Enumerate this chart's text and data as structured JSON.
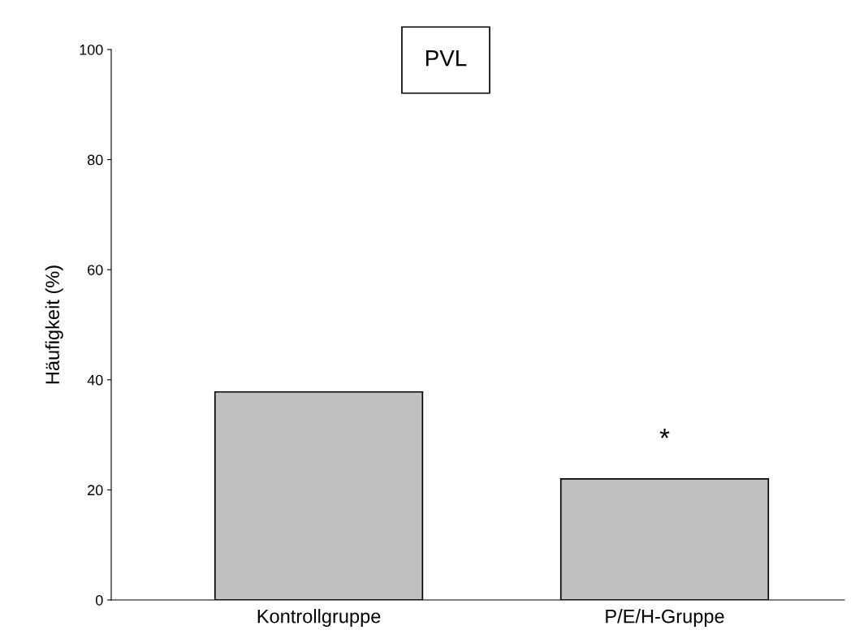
{
  "chart_data": {
    "type": "bar",
    "title": "PVL",
    "ylabel": "Häufigkeit (%)",
    "categories": [
      "Kontrollgruppe",
      "P/E/H-Gruppe"
    ],
    "values": [
      37.8,
      22.0
    ],
    "color": "#c0c0c0",
    "ylim": [
      0,
      100
    ],
    "yticks": [
      0,
      20,
      40,
      60,
      80,
      100
    ],
    "grid": false,
    "annotations": [
      "*"
    ]
  }
}
